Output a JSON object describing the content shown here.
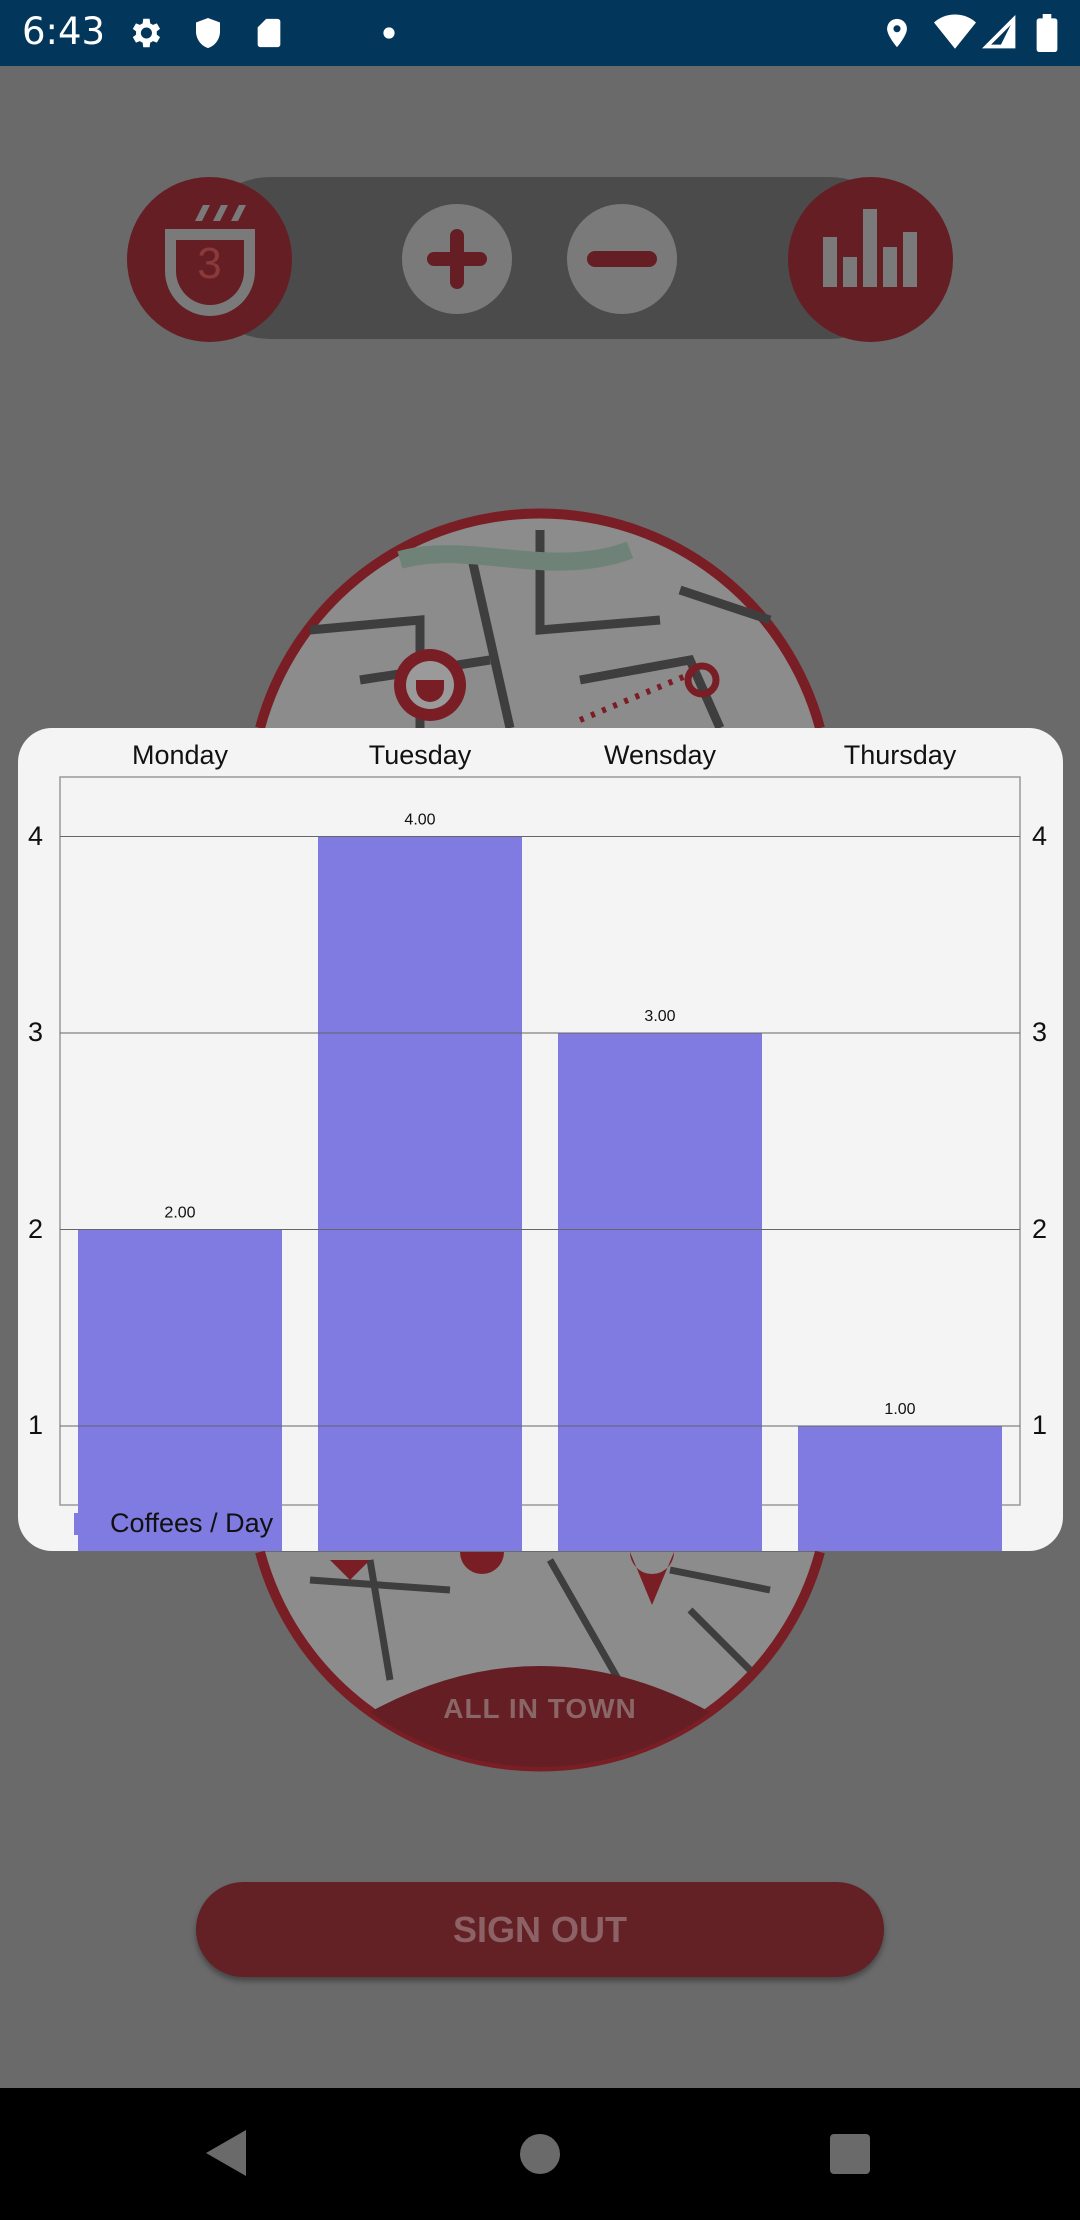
{
  "status_bar": {
    "time": "6:43",
    "left_icons": [
      "gear-icon",
      "shield-icon",
      "sd-card-icon",
      "dot-icon"
    ],
    "right_icons": [
      "location-icon",
      "wifi-icon",
      "signal-icon",
      "battery-icon"
    ]
  },
  "toolbar": {
    "counter_value": "3",
    "icons": [
      "coffee-cup-icon",
      "plus-icon",
      "minus-icon",
      "bar-chart-icon"
    ]
  },
  "map": {
    "label": "ALL IN TOWN"
  },
  "signout": {
    "label": "SIGN OUT"
  },
  "colors": {
    "accent": "#a8212a",
    "bar": "#7f7be0",
    "status_bar": "#02375b"
  },
  "chart_data": {
    "type": "bar",
    "categories": [
      "Monday",
      "Tuesday",
      "Wensday",
      "Thursday"
    ],
    "series": [
      {
        "name": "Coffees / Day",
        "values": [
          2,
          4,
          3,
          1
        ]
      }
    ],
    "value_labels": [
      "2.00",
      "4.00",
      "3.00",
      "1.00"
    ],
    "y_ticks": [
      "1",
      "2",
      "3",
      "4"
    ],
    "y_axis_right": true,
    "grid": true,
    "legend_position": "bottom-left",
    "x_labels_position": "top"
  }
}
